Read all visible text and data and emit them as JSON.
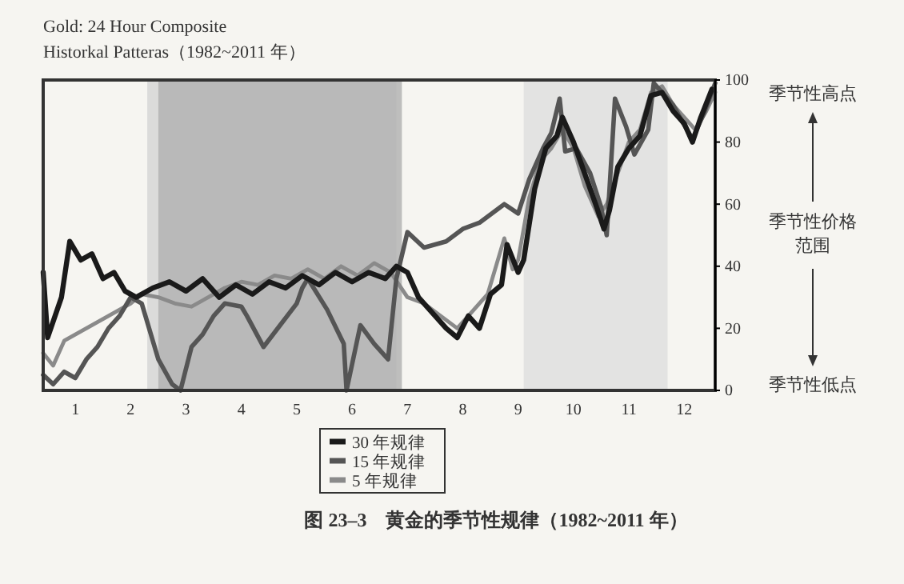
{
  "chart_data": {
    "type": "line",
    "title": "Gold: 24 Hour Composite",
    "subtitle": "Historkal Patteras（1982~2011 年）",
    "annotations": [
      "季节性高点",
      "季节性价格范围",
      "季节性低点",
      "图 23–3　黄金的季节性规律（1982~2011 年）"
    ],
    "xlim": [
      0.42,
      12.56
    ],
    "xticks": [
      1,
      2,
      3,
      4,
      5,
      6,
      7,
      8,
      9,
      10,
      11,
      12
    ],
    "ylim": [
      0,
      100
    ],
    "yticks": [
      0,
      20,
      40,
      60,
      80,
      100
    ],
    "bands": [
      {
        "axis": "x",
        "from": 2.3,
        "to": 6.8,
        "color": "#d4d4d4"
      },
      {
        "axis": "x",
        "from": 2.5,
        "to": 6.9,
        "color": "#b0b0b0"
      },
      {
        "axis": "x",
        "from": 9.1,
        "to": 11.7,
        "color": "#dedede"
      }
    ],
    "legend": "bottom",
    "grid": false,
    "line_style": "solid",
    "marker": "none",
    "series": [
      {
        "name": "30 年规律",
        "color": "#1a1a1a",
        "x": [
          0.42,
          0.5,
          0.75,
          0.9,
          1.1,
          1.3,
          1.5,
          1.7,
          1.9,
          2.1,
          2.4,
          2.7,
          3.0,
          3.3,
          3.6,
          3.9,
          4.2,
          4.5,
          4.8,
          5.1,
          5.4,
          5.7,
          6.0,
          6.3,
          6.6,
          6.8,
          7.0,
          7.2,
          7.4,
          7.7,
          7.9,
          8.1,
          8.3,
          8.5,
          8.7,
          8.8,
          9.0,
          9.1,
          9.3,
          9.5,
          9.7,
          9.8,
          10.0,
          10.2,
          10.4,
          10.55,
          10.65,
          10.8,
          11.0,
          11.2,
          11.4,
          11.6,
          11.8,
          12.0,
          12.15,
          12.3,
          12.5
        ],
        "values": [
          38,
          17,
          30,
          48,
          42,
          44,
          36,
          38,
          32,
          30,
          33,
          35,
          32,
          36,
          30,
          34,
          31,
          35,
          33,
          37,
          34,
          38,
          35,
          38,
          36,
          40,
          38,
          30,
          26,
          20,
          17,
          24,
          20,
          31,
          34,
          47,
          38,
          42,
          65,
          78,
          82,
          88,
          80,
          70,
          60,
          52,
          58,
          72,
          78,
          82,
          95,
          96,
          90,
          86,
          80,
          88,
          97
        ]
      },
      {
        "name": "15 年规律",
        "color": "#555555",
        "x": [
          0.42,
          0.6,
          0.8,
          1.0,
          1.2,
          1.4,
          1.6,
          1.8,
          2.0,
          2.2,
          2.5,
          2.75,
          2.9,
          3.1,
          3.3,
          3.5,
          3.7,
          4.0,
          4.1,
          4.4,
          4.7,
          5.0,
          5.1,
          5.2,
          5.55,
          5.85,
          5.9,
          6.15,
          6.4,
          6.65,
          6.8,
          7.0,
          7.3,
          7.7,
          8.0,
          8.3,
          8.75,
          9.0,
          9.2,
          9.45,
          9.6,
          9.75,
          9.85,
          10.05,
          10.3,
          10.5,
          10.6,
          10.75,
          10.95,
          11.1,
          11.35,
          11.45,
          11.55,
          11.8,
          11.95,
          12.15,
          12.35,
          12.56
        ],
        "values": [
          5,
          2,
          6,
          4,
          10,
          14,
          20,
          24,
          30,
          28,
          10,
          2,
          0,
          14,
          18,
          24,
          28,
          27,
          24,
          14,
          21,
          28,
          33,
          36,
          26,
          15,
          0,
          21,
          15,
          10,
          36,
          51,
          46,
          48,
          52,
          54,
          60,
          57,
          68,
          78,
          83,
          94,
          77,
          78,
          70,
          59,
          50,
          94,
          85,
          76,
          84,
          99,
          97,
          92,
          87,
          81,
          89,
          99
        ]
      },
      {
        "name": "5 年规律",
        "color": "#8a8a8a",
        "x": [
          0.42,
          0.6,
          0.8,
          1.0,
          1.2,
          1.4,
          1.6,
          1.8,
          2.0,
          2.2,
          2.5,
          2.8,
          3.1,
          3.4,
          3.7,
          4.0,
          4.3,
          4.6,
          4.9,
          5.2,
          5.5,
          5.8,
          6.1,
          6.4,
          6.7,
          7.0,
          7.3,
          7.6,
          7.9,
          8.2,
          8.45,
          8.75,
          8.9,
          9.0,
          9.2,
          9.4,
          9.6,
          9.8,
          10.0,
          10.2,
          10.45,
          10.6,
          10.8,
          11.0,
          11.2,
          11.4,
          11.6,
          11.8,
          12.0,
          12.2,
          12.4,
          12.56
        ],
        "values": [
          12,
          8,
          16,
          18,
          20,
          22,
          24,
          26,
          28,
          31,
          30,
          28,
          27,
          30,
          33,
          35,
          34,
          37,
          36,
          39,
          36,
          40,
          37,
          41,
          38,
          30,
          28,
          24,
          20,
          26,
          31,
          49,
          39,
          42,
          62,
          74,
          78,
          84,
          78,
          66,
          56,
          60,
          70,
          80,
          84,
          96,
          98,
          92,
          88,
          84,
          90,
          96
        ]
      }
    ]
  }
}
